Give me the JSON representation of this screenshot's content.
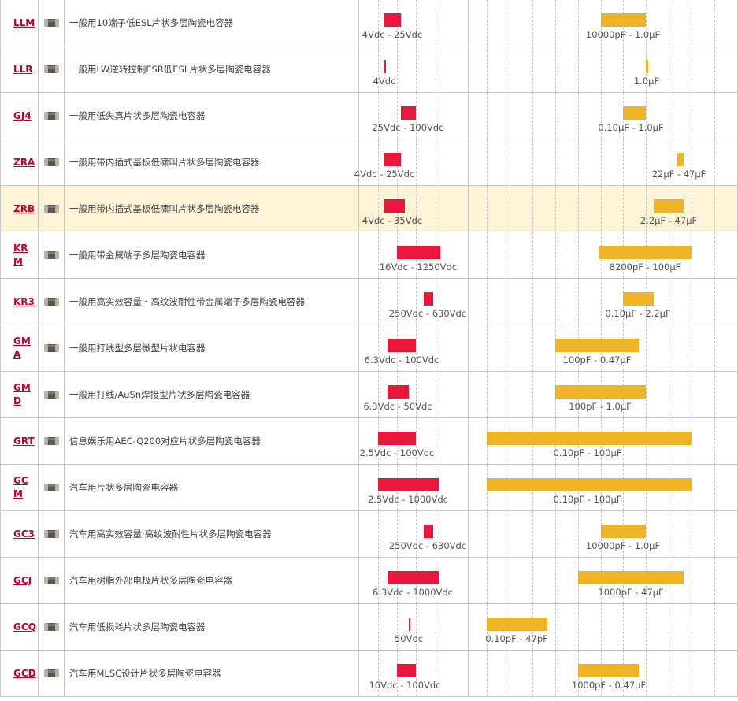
{
  "rows": [
    {
      "code": "LLM",
      "desc": "一般用10端子低ESL片状多层陶瓷电容器",
      "v_label": "4Vdc - 25Vdc",
      "c_label": "10000pF - 1.0μF",
      "highlight": false
    },
    {
      "code": "LLR",
      "desc": "一般用LW逆转控制ESR低ESL片状多层陶瓷电容器",
      "v_label": "4Vdc",
      "c_label": "1.0μF",
      "highlight": false
    },
    {
      "code": "GJ4",
      "desc": "一般用低失真片状多层陶瓷电容器",
      "v_label": "25Vdc - 100Vdc",
      "c_label": "0.10μF - 1.0μF",
      "highlight": false
    },
    {
      "code": "ZRA",
      "desc": "一般用带内插式基板低啸叫片状多层陶瓷电容器",
      "v_label": "4Vdc - 25Vdc",
      "c_label": "22μF - 47μF",
      "highlight": false
    },
    {
      "code": "ZRB",
      "desc": "一般用带内插式基板低啸叫片状多层陶瓷电容器",
      "v_label": "4Vdc - 35Vdc",
      "c_label": "2.2μF - 47μF",
      "highlight": true
    },
    {
      "code": "KRM",
      "desc": "一般用带金属端子多层陶瓷电容器",
      "v_label": "16Vdc - 1250Vdc",
      "c_label": "8200pF - 100μF",
      "highlight": false
    },
    {
      "code": "KR3",
      "desc": "一般用高实效容量・高纹波耐性带金属端子多层陶瓷电容器",
      "v_label": "250Vdc - 630Vdc",
      "c_label": "0.10μF - 2.2μF",
      "highlight": false
    },
    {
      "code": "GMA",
      "desc": "一般用打线型多层微型片状电容器",
      "v_label": "6.3Vdc - 100Vdc",
      "c_label": "100pF - 0.47μF",
      "highlight": false
    },
    {
      "code": "GMD",
      "desc": "一般用打线/AuSn焊接型片状多层陶瓷电容器",
      "v_label": "6.3Vdc - 50Vdc",
      "c_label": "100pF - 1.0μF",
      "highlight": false
    },
    {
      "code": "GRT",
      "desc": "信息娱乐用AEC-Q200对应片状多层陶瓷电容器",
      "v_label": "2.5Vdc - 100Vdc",
      "c_label": "0.10pF - 100μF",
      "highlight": false
    },
    {
      "code": "GCM",
      "desc": "汽车用片状多层陶瓷电容器",
      "v_label": "2.5Vdc - 1000Vdc",
      "c_label": "0.10pF - 100μF",
      "highlight": false
    },
    {
      "code": "GC3",
      "desc": "汽车用高实效容量·高纹波耐性片状多层陶瓷电容器",
      "v_label": "250Vdc - 630Vdc",
      "c_label": "10000pF - 1.0μF",
      "highlight": false
    },
    {
      "code": "GCJ",
      "desc": "汽车用树脂外部电极片状多层陶瓷电容器",
      "v_label": "6.3Vdc - 1000Vdc",
      "c_label": "1000pF - 47μF",
      "highlight": false
    },
    {
      "code": "GCQ",
      "desc": "汽车用低损耗片状多层陶瓷电容器",
      "v_label": "50Vdc",
      "c_label": "0.10pF - 47pF",
      "highlight": false
    },
    {
      "code": "GCD",
      "desc": "汽车用MLSC设计片状多层陶瓷电容器",
      "v_label": "16Vdc - 100Vdc",
      "c_label": "1000pF - 0.47μF",
      "highlight": false
    }
  ],
  "colors": {
    "voltage_bar": "#e8173c",
    "capacitance_bar": "#efb425",
    "code_link": "#c4002a",
    "highlight_row": "#fdf3d6"
  },
  "icons": [
    "chip-capacitor-icon"
  ]
}
